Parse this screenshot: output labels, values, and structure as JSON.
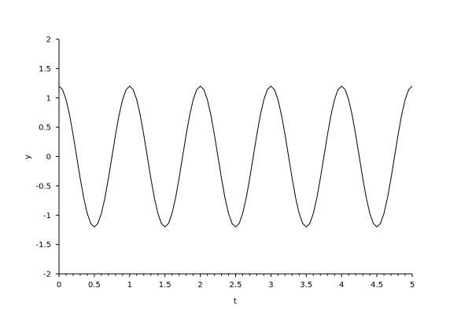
{
  "chart_data": {
    "type": "line",
    "title": "",
    "xlabel": "t",
    "ylabel": "y",
    "xlim": [
      0,
      5
    ],
    "ylim": [
      -2,
      2
    ],
    "grid": false,
    "xticks": [
      "0",
      "0.5",
      "1",
      "1.5",
      "2",
      "2.5",
      "3",
      "3.5",
      "4",
      "4.5",
      "5"
    ],
    "yticks": [
      "-2",
      "-1.5",
      "-1",
      "-0.5",
      "0",
      "0.5",
      "1",
      "1.5",
      "2"
    ],
    "line_color": "#000000",
    "series": [
      {
        "x": [
          0,
          0.05,
          0.1,
          0.15,
          0.2,
          0.25,
          0.3,
          0.35,
          0.4,
          0.45,
          0.5,
          0.55,
          0.6,
          0.65,
          0.7,
          0.75,
          0.8,
          0.85,
          0.9,
          0.95,
          1,
          1.05,
          1.1,
          1.15,
          1.2,
          1.25,
          1.3,
          1.35,
          1.4,
          1.45,
          1.5,
          1.55,
          1.6,
          1.65,
          1.7,
          1.75,
          1.8,
          1.85,
          1.9,
          1.95,
          2,
          2.05,
          2.1,
          2.15,
          2.2,
          2.25,
          2.3,
          2.35,
          2.4,
          2.45,
          2.5,
          2.55,
          2.6,
          2.65,
          2.7,
          2.75,
          2.8,
          2.85,
          2.9,
          2.95,
          3,
          3.05,
          3.1,
          3.15,
          3.2,
          3.25,
          3.3,
          3.35,
          3.4,
          3.45,
          3.5,
          3.55,
          3.6,
          3.65,
          3.7,
          3.75,
          3.8,
          3.85,
          3.9,
          3.95,
          4,
          4.05,
          4.1,
          4.15,
          4.2,
          4.25,
          4.3,
          4.35,
          4.4,
          4.45,
          4.5,
          4.55,
          4.6,
          4.65,
          4.7,
          4.75,
          4.8,
          4.85,
          4.9,
          4.95,
          5
        ],
        "y": [
          1.2,
          1.1413,
          0.9708,
          0.7053,
          0.3708,
          0,
          -0.3708,
          -0.7053,
          -0.9708,
          -1.1413,
          -1.2,
          -1.1413,
          -0.9708,
          -0.7053,
          -0.3708,
          0,
          0.3708,
          0.7053,
          0.9708,
          1.1413,
          1.2,
          1.1413,
          0.9708,
          0.7053,
          0.3708,
          0,
          -0.3708,
          -0.7053,
          -0.9708,
          -1.1413,
          -1.2,
          -1.1413,
          -0.9708,
          -0.7053,
          -0.3708,
          0,
          0.3708,
          0.7053,
          0.9708,
          1.1413,
          1.2,
          1.1413,
          0.9708,
          0.7053,
          0.3708,
          0,
          -0.3708,
          -0.7053,
          -0.9708,
          -1.1413,
          -1.2,
          -1.1413,
          -0.9708,
          -0.7053,
          -0.3708,
          0,
          0.3708,
          0.7053,
          0.9708,
          1.1413,
          1.2,
          1.1413,
          0.9708,
          0.7053,
          0.3708,
          0,
          -0.3708,
          -0.7053,
          -0.9708,
          -1.1413,
          -1.2,
          -1.1413,
          -0.9708,
          -0.7053,
          -0.3708,
          0,
          0.3708,
          0.7053,
          0.9708,
          1.1413,
          1.2,
          1.1413,
          0.9708,
          0.7053,
          0.3708,
          0,
          -0.3708,
          -0.7053,
          -0.9708,
          -1.1413,
          -1.2,
          -1.1413,
          -0.9708,
          -0.7053,
          -0.3708,
          0,
          0.3708,
          0.7053,
          0.9708,
          1.1413,
          1.2
        ]
      }
    ]
  }
}
